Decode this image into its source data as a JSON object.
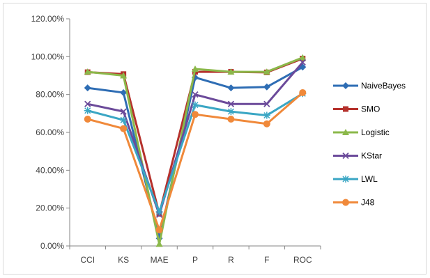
{
  "chart_data": {
    "type": "line",
    "categories": [
      "CCI",
      "KS",
      "MAE",
      "P",
      "R",
      "F",
      "ROC"
    ],
    "y_ticks": [
      "0.00%",
      "20.00%",
      "40.00%",
      "60.00%",
      "80.00%",
      "100.00%",
      "120.00%"
    ],
    "ylim": [
      0,
      120
    ],
    "grid": false,
    "legend_position": "right",
    "series": [
      {
        "name": "NaiveBayes",
        "color": "#2e6db4",
        "marker": "diamond",
        "values": [
          83.5,
          81,
          4,
          89,
          83.5,
          84,
          94.5
        ]
      },
      {
        "name": "SMO",
        "color": "#b5312c",
        "marker": "square",
        "values": [
          91.8,
          90.8,
          17,
          92,
          92,
          91.7,
          99
        ]
      },
      {
        "name": "Logistic",
        "color": "#8bb84a",
        "marker": "triangle",
        "values": [
          92,
          90,
          1,
          93.5,
          92,
          92,
          99.5
        ]
      },
      {
        "name": "KStar",
        "color": "#6b4a9a",
        "marker": "x",
        "values": [
          75,
          71,
          16.5,
          80,
          75,
          75,
          97
        ]
      },
      {
        "name": "LWL",
        "color": "#3aa6c4",
        "marker": "star",
        "values": [
          71.5,
          66.5,
          18,
          74.5,
          71,
          69,
          80.5
        ]
      },
      {
        "name": "J48",
        "color": "#f0893a",
        "marker": "circle",
        "values": [
          67,
          62,
          8.5,
          69.5,
          67,
          64.5,
          81
        ]
      }
    ]
  }
}
